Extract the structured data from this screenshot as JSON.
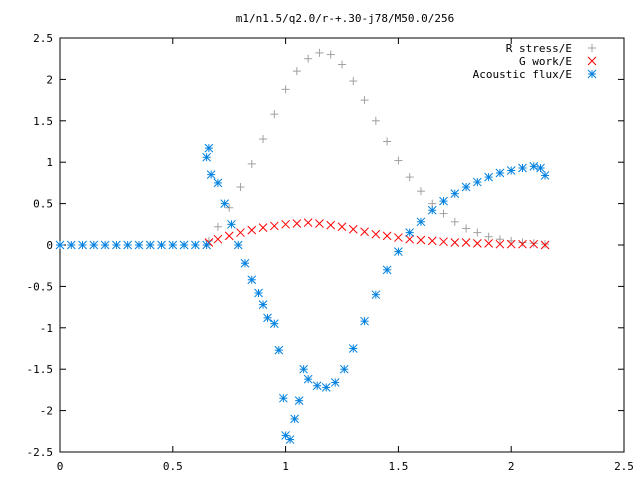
{
  "chart_data": {
    "type": "scatter",
    "title": "m1/n1.5/q2.0/r-+.30-j78/M50.0/256",
    "xlabel": "",
    "ylabel": "",
    "xlim": [
      0,
      2.5
    ],
    "ylim": [
      -2.5,
      2.5
    ],
    "x_ticks": [
      "0",
      "0.5",
      "1",
      "1.5",
      "2",
      "2.5"
    ],
    "y_ticks": [
      "2.5",
      "2",
      "1.5",
      "1",
      "0.5",
      "0",
      "-0.5",
      "-1",
      "-1.5",
      "-2",
      "-2.5"
    ],
    "x_tick_values": [
      0,
      0.5,
      1,
      1.5,
      2,
      2.5
    ],
    "y_tick_values": [
      2.5,
      2,
      1.5,
      1,
      0.5,
      0,
      -0.5,
      -1,
      -1.5,
      -2,
      -2.5
    ],
    "grid": false,
    "legend_position": "top-right",
    "series": [
      {
        "name": "R stress/E",
        "marker": "plus",
        "color": "#a0a0a0",
        "points": [
          [
            0.66,
            0.05
          ],
          [
            0.7,
            0.22
          ],
          [
            0.75,
            0.45
          ],
          [
            0.8,
            0.7
          ],
          [
            0.85,
            0.98
          ],
          [
            0.9,
            1.28
          ],
          [
            0.95,
            1.58
          ],
          [
            1.0,
            1.88
          ],
          [
            1.05,
            2.1
          ],
          [
            1.1,
            2.25
          ],
          [
            1.15,
            2.32
          ],
          [
            1.2,
            2.3
          ],
          [
            1.25,
            2.18
          ],
          [
            1.3,
            1.98
          ],
          [
            1.35,
            1.75
          ],
          [
            1.4,
            1.5
          ],
          [
            1.45,
            1.25
          ],
          [
            1.5,
            1.02
          ],
          [
            1.55,
            0.82
          ],
          [
            1.6,
            0.65
          ],
          [
            1.65,
            0.5
          ],
          [
            1.7,
            0.38
          ],
          [
            1.75,
            0.28
          ],
          [
            1.8,
            0.2
          ],
          [
            1.85,
            0.15
          ],
          [
            1.9,
            0.1
          ],
          [
            1.95,
            0.07
          ],
          [
            2.0,
            0.05
          ],
          [
            2.05,
            0.03
          ],
          [
            2.1,
            0.02
          ],
          [
            2.15,
            0.01
          ]
        ]
      },
      {
        "name": "G work/E",
        "marker": "cross",
        "color": "#ff0000",
        "points": [
          [
            0.66,
            0.03
          ],
          [
            0.7,
            0.07
          ],
          [
            0.75,
            0.11
          ],
          [
            0.8,
            0.15
          ],
          [
            0.85,
            0.18
          ],
          [
            0.9,
            0.21
          ],
          [
            0.95,
            0.23
          ],
          [
            1.0,
            0.25
          ],
          [
            1.05,
            0.26
          ],
          [
            1.1,
            0.27
          ],
          [
            1.15,
            0.26
          ],
          [
            1.2,
            0.24
          ],
          [
            1.25,
            0.22
          ],
          [
            1.3,
            0.19
          ],
          [
            1.35,
            0.16
          ],
          [
            1.4,
            0.13
          ],
          [
            1.45,
            0.11
          ],
          [
            1.5,
            0.09
          ],
          [
            1.55,
            0.07
          ],
          [
            1.6,
            0.06
          ],
          [
            1.65,
            0.05
          ],
          [
            1.7,
            0.04
          ],
          [
            1.75,
            0.03
          ],
          [
            1.8,
            0.03
          ],
          [
            1.85,
            0.02
          ],
          [
            1.9,
            0.02
          ],
          [
            1.95,
            0.01
          ],
          [
            2.0,
            0.01
          ],
          [
            2.05,
            0.01
          ],
          [
            2.1,
            0.01
          ],
          [
            2.15,
            0.0
          ]
        ]
      },
      {
        "name": "Acoustic flux/E",
        "marker": "star",
        "color": "#0080e0",
        "points": [
          [
            0.0,
            0.0
          ],
          [
            0.05,
            0.0
          ],
          [
            0.1,
            0.0
          ],
          [
            0.15,
            0.0
          ],
          [
            0.2,
            0.0
          ],
          [
            0.25,
            0.0
          ],
          [
            0.3,
            0.0
          ],
          [
            0.35,
            0.0
          ],
          [
            0.4,
            0.0
          ],
          [
            0.45,
            0.0
          ],
          [
            0.5,
            0.0
          ],
          [
            0.55,
            0.0
          ],
          [
            0.6,
            0.0
          ],
          [
            0.65,
            0.0
          ],
          [
            0.65,
            1.06
          ],
          [
            0.66,
            1.17
          ],
          [
            0.67,
            0.85
          ],
          [
            0.7,
            0.75
          ],
          [
            0.73,
            0.5
          ],
          [
            0.76,
            0.25
          ],
          [
            0.79,
            0.0
          ],
          [
            0.82,
            -0.22
          ],
          [
            0.85,
            -0.42
          ],
          [
            0.88,
            -0.58
          ],
          [
            0.9,
            -0.72
          ],
          [
            0.92,
            -0.88
          ],
          [
            0.95,
            -0.95
          ],
          [
            0.97,
            -1.27
          ],
          [
            0.99,
            -1.85
          ],
          [
            1.0,
            -2.3
          ],
          [
            1.02,
            -2.35
          ],
          [
            1.04,
            -2.1
          ],
          [
            1.06,
            -1.88
          ],
          [
            1.08,
            -1.5
          ],
          [
            1.1,
            -1.62
          ],
          [
            1.14,
            -1.7
          ],
          [
            1.18,
            -1.72
          ],
          [
            1.22,
            -1.66
          ],
          [
            1.26,
            -1.5
          ],
          [
            1.3,
            -1.25
          ],
          [
            1.35,
            -0.92
          ],
          [
            1.4,
            -0.6
          ],
          [
            1.45,
            -0.3
          ],
          [
            1.5,
            -0.08
          ],
          [
            1.55,
            0.15
          ],
          [
            1.6,
            0.28
          ],
          [
            1.65,
            0.42
          ],
          [
            1.7,
            0.53
          ],
          [
            1.75,
            0.62
          ],
          [
            1.8,
            0.7
          ],
          [
            1.85,
            0.76
          ],
          [
            1.9,
            0.82
          ],
          [
            1.95,
            0.87
          ],
          [
            2.0,
            0.9
          ],
          [
            2.05,
            0.93
          ],
          [
            2.1,
            0.95
          ],
          [
            2.13,
            0.93
          ],
          [
            2.15,
            0.84
          ]
        ]
      }
    ]
  }
}
